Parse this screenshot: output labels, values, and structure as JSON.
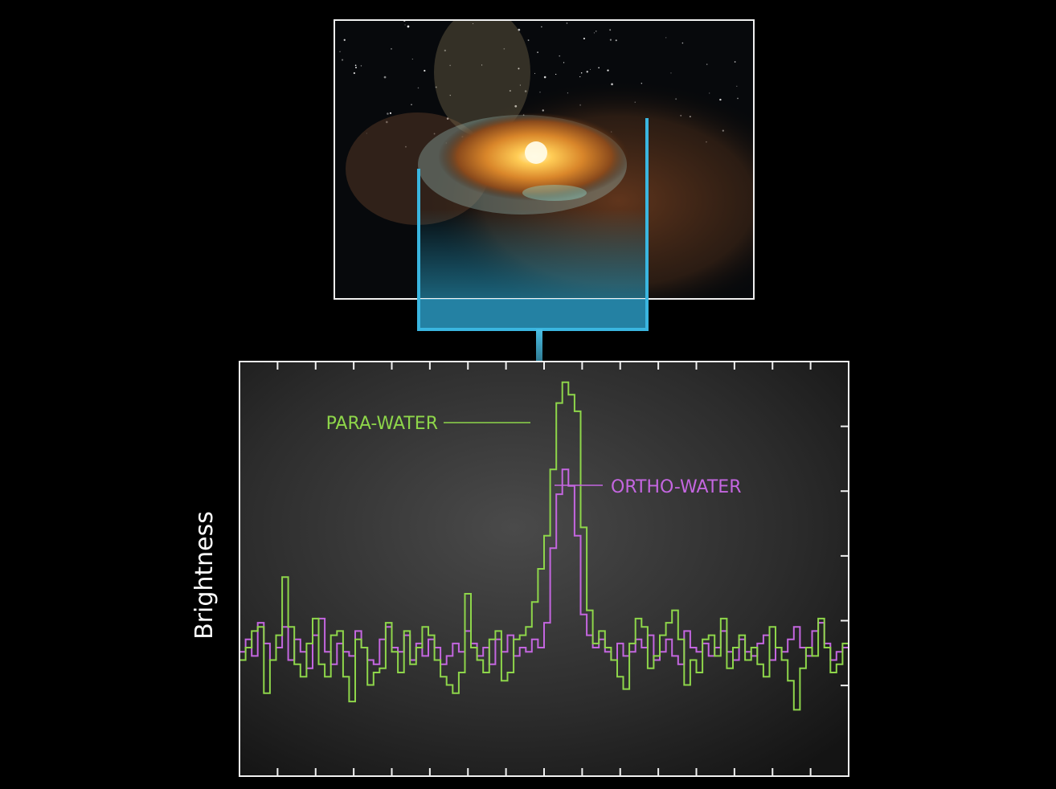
{
  "illustration": {
    "subject": "protoplanetary disk around a young star"
  },
  "chart_data": {
    "type": "line",
    "ylabel": "Brightness",
    "xlabel": "",
    "grid": false,
    "annotations": [
      {
        "text": "PARA-WATER",
        "series": "PARA-WATER",
        "color": "#8ed64a"
      },
      {
        "text": "ORTHO-WATER",
        "series": "ORTHO-WATER",
        "color": "#c466e0"
      }
    ],
    "xlim": [
      0,
      100
    ],
    "ylim": [
      0,
      100
    ],
    "series": [
      {
        "name": "PARA-WATER",
        "color": "#8ed64a",
        "step": true,
        "x": [
          0,
          1,
          2,
          3,
          4,
          5,
          6,
          7,
          8,
          9,
          10,
          11,
          12,
          13,
          14,
          15,
          16,
          17,
          18,
          19,
          20,
          21,
          22,
          23,
          24,
          25,
          26,
          27,
          28,
          29,
          30,
          31,
          32,
          33,
          34,
          35,
          36,
          37,
          38,
          39,
          40,
          41,
          42,
          43,
          44,
          45,
          46,
          47,
          48,
          49,
          50,
          51,
          52,
          53,
          54,
          55,
          56,
          57,
          58,
          59,
          60,
          61,
          62,
          63,
          64,
          65,
          66,
          67,
          68,
          69,
          70,
          71,
          72,
          73,
          74,
          75,
          76,
          77,
          78,
          79,
          80,
          81,
          82,
          83,
          84,
          85,
          86,
          87,
          88,
          89,
          90,
          91,
          92,
          93,
          94,
          95,
          96,
          97,
          98,
          99
        ],
        "values": [
          28,
          31,
          35,
          36,
          20,
          28,
          34,
          48,
          36,
          27,
          24,
          32,
          38,
          27,
          24,
          34,
          35,
          24,
          18,
          33,
          31,
          22,
          25,
          26,
          37,
          30,
          25,
          35,
          27,
          31,
          36,
          34,
          28,
          24,
          22,
          20,
          25,
          44,
          31,
          28,
          25,
          33,
          35,
          23,
          25,
          33,
          34,
          36,
          42,
          50,
          58,
          74,
          90,
          95,
          92,
          88,
          60,
          40,
          32,
          35,
          31,
          28,
          24,
          21,
          32,
          38,
          36,
          26,
          29,
          34,
          37,
          40,
          33,
          22,
          28,
          25,
          33,
          34,
          29,
          38,
          26,
          31,
          34,
          28,
          31,
          27,
          24,
          36,
          31,
          28,
          23,
          16,
          26,
          31,
          29,
          38,
          31,
          25,
          27,
          32
        ]
      },
      {
        "name": "ORTHO-WATER",
        "color": "#c466e0",
        "step": true,
        "x": [
          0,
          1,
          2,
          3,
          4,
          5,
          6,
          7,
          8,
          9,
          10,
          11,
          12,
          13,
          14,
          15,
          16,
          17,
          18,
          19,
          20,
          21,
          22,
          23,
          24,
          25,
          26,
          27,
          28,
          29,
          30,
          31,
          32,
          33,
          34,
          35,
          36,
          37,
          38,
          39,
          40,
          41,
          42,
          43,
          44,
          45,
          46,
          47,
          48,
          49,
          50,
          51,
          52,
          53,
          54,
          55,
          56,
          57,
          58,
          59,
          60,
          61,
          62,
          63,
          64,
          65,
          66,
          67,
          68,
          69,
          70,
          71,
          72,
          73,
          74,
          75,
          76,
          77,
          78,
          79,
          80,
          81,
          82,
          83,
          84,
          85,
          86,
          87,
          88,
          89,
          90,
          91,
          92,
          93,
          94,
          95,
          96,
          97,
          98,
          99
        ],
        "values": [
          30,
          33,
          29,
          37,
          32,
          28,
          31,
          36,
          28,
          33,
          30,
          26,
          34,
          38,
          30,
          27,
          32,
          30,
          29,
          35,
          31,
          28,
          27,
          33,
          36,
          31,
          30,
          34,
          28,
          32,
          29,
          33,
          31,
          27,
          29,
          32,
          30,
          35,
          32,
          29,
          31,
          27,
          33,
          30,
          34,
          29,
          31,
          30,
          33,
          31,
          37,
          55,
          68,
          74,
          70,
          58,
          39,
          34,
          31,
          33,
          30,
          28,
          32,
          29,
          30,
          33,
          31,
          34,
          28,
          30,
          33,
          29,
          27,
          35,
          31,
          30,
          32,
          29,
          31,
          35,
          30,
          28,
          33,
          30,
          29,
          32,
          34,
          28,
          31,
          30,
          33,
          36,
          31,
          29,
          35,
          37,
          32,
          28,
          30,
          31
        ]
      }
    ]
  }
}
